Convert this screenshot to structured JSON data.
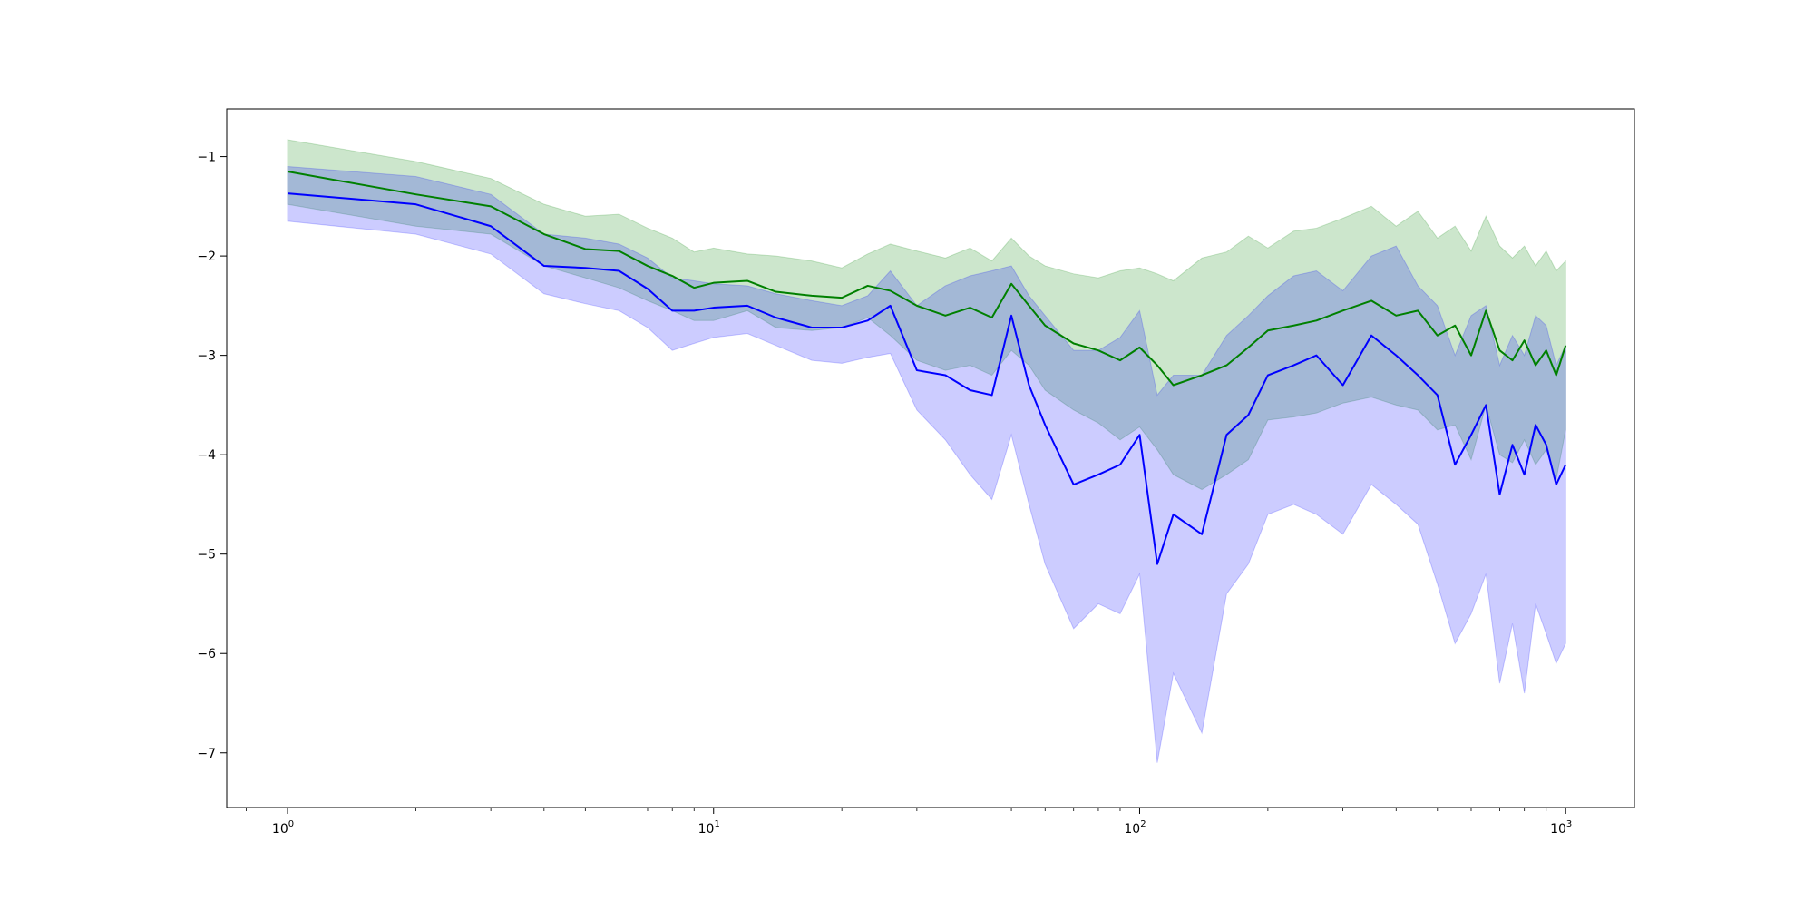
{
  "chart_data": {
    "type": "line",
    "title": "",
    "xlabel": "",
    "ylabel": "",
    "xscale": "log",
    "xlim": [
      0.72,
      1450
    ],
    "ylim": [
      -7.55,
      -0.52
    ],
    "grid": false,
    "legend": "none",
    "xticks": [
      {
        "value": 1,
        "base": "10",
        "exp": "0"
      },
      {
        "value": 10,
        "base": "10",
        "exp": "1"
      },
      {
        "value": 100,
        "base": "10",
        "exp": "2"
      },
      {
        "value": 1000,
        "base": "10",
        "exp": "3"
      }
    ],
    "yticks": [
      {
        "value": -1,
        "label": "−1"
      },
      {
        "value": -2,
        "label": "−2"
      },
      {
        "value": -3,
        "label": "−3"
      },
      {
        "value": -4,
        "label": "−4"
      },
      {
        "value": -5,
        "label": "−5"
      },
      {
        "value": -6,
        "label": "−6"
      },
      {
        "value": -7,
        "label": "−7"
      }
    ],
    "series": [
      {
        "color": "#008000",
        "band_color": "#008000",
        "band_opacity": 0.2,
        "x": [
          1,
          2,
          3,
          4,
          5,
          6,
          7,
          8,
          9,
          10,
          12,
          14,
          17,
          20,
          23,
          26,
          30,
          35,
          40,
          45,
          50,
          55,
          60,
          70,
          80,
          90,
          100,
          110,
          120,
          140,
          160,
          180,
          200,
          230,
          260,
          300,
          350,
          400,
          450,
          500,
          550,
          600,
          650,
          700,
          750,
          800,
          850,
          900,
          950,
          1000
        ],
        "y": [
          -1.15,
          -1.38,
          -1.5,
          -1.78,
          -1.93,
          -1.95,
          -2.1,
          -2.2,
          -2.32,
          -2.27,
          -2.25,
          -2.36,
          -2.4,
          -2.42,
          -2.3,
          -2.35,
          -2.5,
          -2.6,
          -2.52,
          -2.62,
          -2.28,
          -2.5,
          -2.7,
          -2.88,
          -2.95,
          -3.05,
          -2.92,
          -3.1,
          -3.3,
          -3.2,
          -3.1,
          -2.92,
          -2.75,
          -2.7,
          -2.65,
          -2.55,
          -2.45,
          -2.6,
          -2.55,
          -2.8,
          -2.7,
          -3.0,
          -2.55,
          -2.95,
          -3.05,
          -2.85,
          -3.1,
          -2.95,
          -3.2,
          -2.9
        ],
        "upper": [
          -0.83,
          -1.05,
          -1.22,
          -1.48,
          -1.6,
          -1.58,
          -1.72,
          -1.82,
          -1.96,
          -1.92,
          -1.98,
          -2.0,
          -2.05,
          -2.12,
          -1.98,
          -1.88,
          -1.95,
          -2.02,
          -1.92,
          -2.05,
          -1.82,
          -2.0,
          -2.1,
          -2.18,
          -2.22,
          -2.15,
          -2.12,
          -2.18,
          -2.25,
          -2.02,
          -1.96,
          -1.8,
          -1.92,
          -1.75,
          -1.72,
          -1.62,
          -1.5,
          -1.7,
          -1.55,
          -1.82,
          -1.7,
          -1.95,
          -1.6,
          -1.9,
          -2.02,
          -1.9,
          -2.1,
          -1.95,
          -2.15,
          -2.05
        ],
        "lower": [
          -1.48,
          -1.7,
          -1.78,
          -2.1,
          -2.22,
          -2.32,
          -2.45,
          -2.55,
          -2.65,
          -2.65,
          -2.55,
          -2.72,
          -2.75,
          -2.72,
          -2.62,
          -2.8,
          -3.05,
          -3.15,
          -3.1,
          -3.2,
          -2.95,
          -3.1,
          -3.35,
          -3.55,
          -3.68,
          -3.85,
          -3.72,
          -3.95,
          -4.2,
          -4.35,
          -4.2,
          -4.05,
          -3.65,
          -3.62,
          -3.58,
          -3.48,
          -3.42,
          -3.5,
          -3.55,
          -3.75,
          -3.7,
          -4.05,
          -3.5,
          -4.0,
          -4.08,
          -3.85,
          -4.1,
          -3.95,
          -4.25,
          -3.75
        ]
      },
      {
        "color": "#0000ff",
        "band_color": "#0000ff",
        "band_opacity": 0.2,
        "x": [
          1,
          2,
          3,
          4,
          5,
          6,
          7,
          8,
          9,
          10,
          12,
          14,
          17,
          20,
          23,
          26,
          30,
          35,
          40,
          45,
          50,
          55,
          60,
          70,
          80,
          90,
          100,
          110,
          120,
          140,
          160,
          180,
          200,
          230,
          260,
          300,
          350,
          400,
          450,
          500,
          550,
          600,
          650,
          700,
          750,
          800,
          850,
          900,
          950,
          1000
        ],
        "y": [
          -1.37,
          -1.48,
          -1.7,
          -2.1,
          -2.12,
          -2.15,
          -2.33,
          -2.55,
          -2.55,
          -2.52,
          -2.5,
          -2.62,
          -2.72,
          -2.72,
          -2.65,
          -2.5,
          -3.15,
          -3.2,
          -3.35,
          -3.4,
          -2.6,
          -3.3,
          -3.7,
          -4.3,
          -4.2,
          -4.1,
          -3.8,
          -5.1,
          -4.6,
          -4.8,
          -3.8,
          -3.6,
          -3.2,
          -3.1,
          -3.0,
          -3.3,
          -2.8,
          -3.0,
          -3.2,
          -3.4,
          -4.1,
          -3.8,
          -3.5,
          -4.4,
          -3.9,
          -4.2,
          -3.7,
          -3.9,
          -4.3,
          -4.1
        ],
        "upper": [
          -1.1,
          -1.2,
          -1.38,
          -1.78,
          -1.82,
          -1.88,
          -2.02,
          -2.22,
          -2.25,
          -2.28,
          -2.3,
          -2.38,
          -2.45,
          -2.5,
          -2.4,
          -2.15,
          -2.5,
          -2.3,
          -2.2,
          -2.15,
          -2.1,
          -2.4,
          -2.6,
          -2.95,
          -2.95,
          -2.82,
          -2.55,
          -3.4,
          -3.2,
          -3.2,
          -2.8,
          -2.6,
          -2.4,
          -2.2,
          -2.15,
          -2.35,
          -2.0,
          -1.9,
          -2.3,
          -2.5,
          -3.0,
          -2.6,
          -2.5,
          -3.1,
          -2.8,
          -3.0,
          -2.6,
          -2.7,
          -3.1,
          -2.9
        ],
        "lower": [
          -1.65,
          -1.78,
          -1.98,
          -2.38,
          -2.48,
          -2.55,
          -2.72,
          -2.95,
          -2.88,
          -2.82,
          -2.78,
          -2.9,
          -3.05,
          -3.08,
          -3.02,
          -2.98,
          -3.55,
          -3.85,
          -4.2,
          -4.45,
          -3.8,
          -4.5,
          -5.1,
          -5.75,
          -5.5,
          -5.6,
          -5.2,
          -7.1,
          -6.2,
          -6.8,
          -5.4,
          -5.1,
          -4.6,
          -4.5,
          -4.6,
          -4.8,
          -4.3,
          -4.5,
          -4.7,
          -5.3,
          -5.9,
          -5.6,
          -5.2,
          -6.3,
          -5.7,
          -6.4,
          -5.5,
          -5.8,
          -6.1,
          -5.9
        ]
      }
    ]
  }
}
